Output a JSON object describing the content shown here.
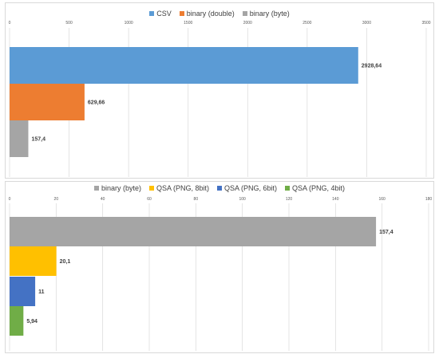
{
  "chart_data": [
    {
      "type": "bar",
      "orientation": "horizontal",
      "title": "",
      "xlim": [
        0,
        3500
      ],
      "x_ticks": [
        "0",
        "500",
        "1000",
        "1500",
        "2000",
        "2500",
        "3000",
        "3500"
      ],
      "grid": true,
      "legend_position": "top",
      "series": [
        {
          "name": "CSV",
          "value": 2928.64,
          "label": "2928,64",
          "color": "#5b9bd5"
        },
        {
          "name": "binary (double)",
          "value": 629.66,
          "label": "629,66",
          "color": "#ed7d31"
        },
        {
          "name": "binary (byte)",
          "value": 157.4,
          "label": "157,4",
          "color": "#a5a5a5"
        }
      ]
    },
    {
      "type": "bar",
      "orientation": "horizontal",
      "title": "",
      "xlim": [
        0,
        180
      ],
      "x_ticks": [
        "0",
        "20",
        "40",
        "60",
        "80",
        "100",
        "120",
        "140",
        "160",
        "180"
      ],
      "grid": true,
      "legend_position": "top",
      "series": [
        {
          "name": "binary (byte)",
          "value": 157.4,
          "label": "157,4",
          "color": "#a5a5a5"
        },
        {
          "name": "QSA (PNG, 8bit)",
          "value": 20.1,
          "label": "20,1",
          "color": "#ffc000"
        },
        {
          "name": "QSA (PNG, 6bit)",
          "value": 11,
          "label": "11",
          "color": "#4472c4"
        },
        {
          "name": "QSA (PNG, 4bit)",
          "value": 5.94,
          "label": "5,94",
          "color": "#70ad47"
        }
      ]
    }
  ]
}
